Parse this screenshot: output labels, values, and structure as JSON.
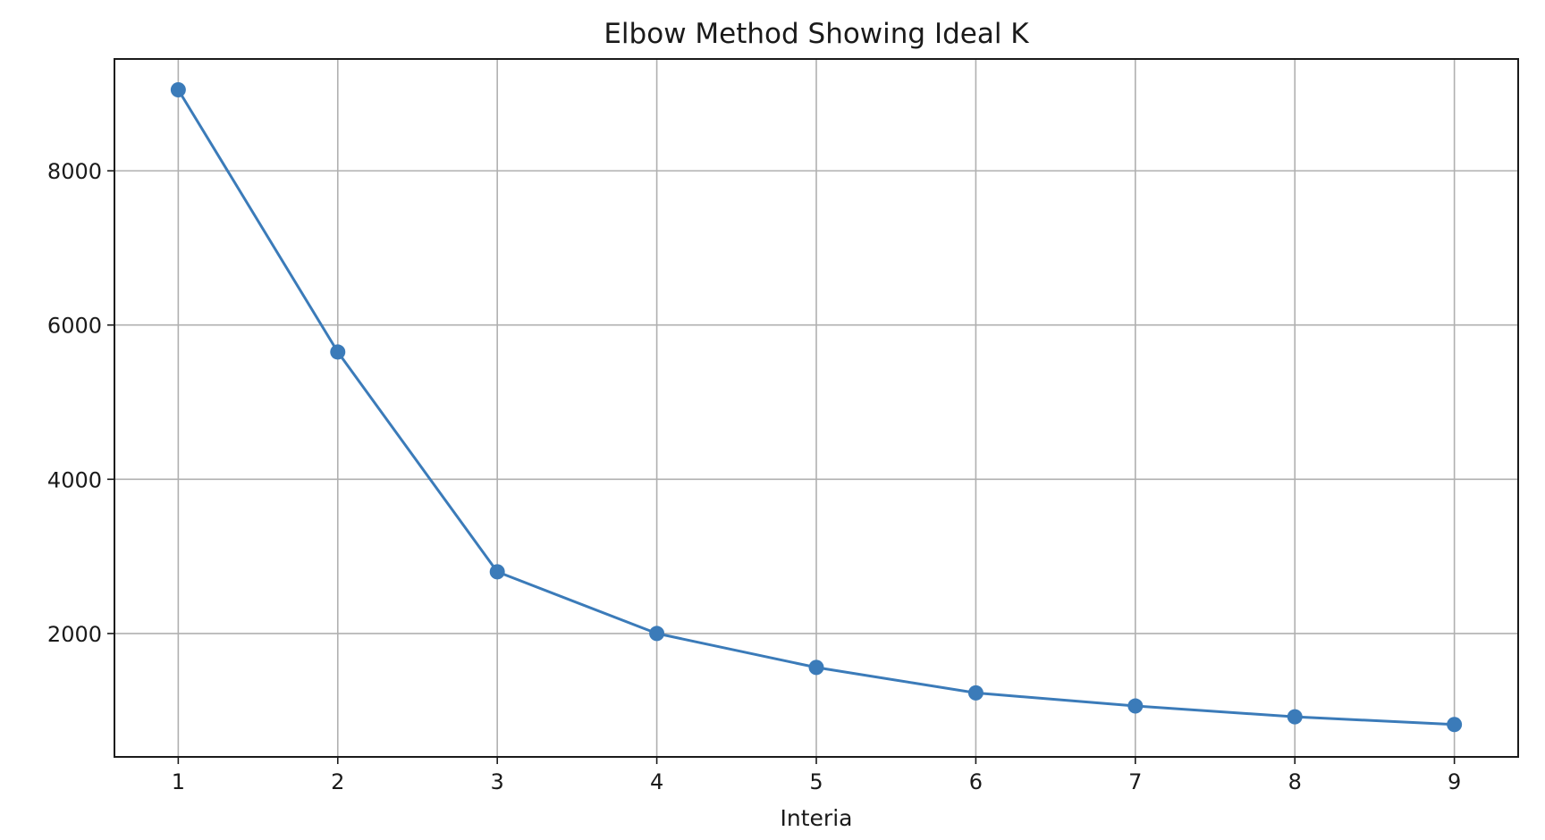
{
  "chart_data": {
    "type": "line",
    "title": "Elbow Method Showing Ideal K",
    "xlabel": "Interia",
    "ylabel": "",
    "x": [
      1,
      2,
      3,
      4,
      5,
      6,
      7,
      8,
      9
    ],
    "series": [
      {
        "values": [
          9050,
          5650,
          2800,
          2000,
          1560,
          1230,
          1060,
          920,
          820
        ],
        "color": "#3b7bb9",
        "marker": "circle"
      }
    ],
    "xlim": [
      0.6,
      9.4
    ],
    "ylim": [
      400,
      9450
    ],
    "xticks": [
      1,
      2,
      3,
      4,
      5,
      6,
      7,
      8,
      9
    ],
    "yticks": [
      2000,
      4000,
      6000,
      8000
    ],
    "xtick_labels": [
      "1",
      "2",
      "3",
      "4",
      "5",
      "6",
      "7",
      "8",
      "9"
    ],
    "ytick_labels": [
      "2000",
      "4000",
      "6000",
      "8000"
    ],
    "grid": true,
    "grid_color": "#b0b0b0",
    "axes_color": "#1a1a1a",
    "legend": "none"
  }
}
